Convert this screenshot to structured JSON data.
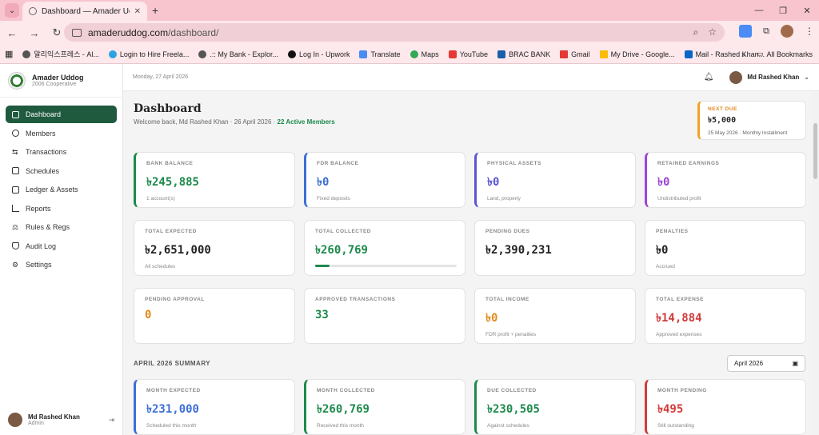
{
  "browser": {
    "tab_title": "Dashboard — Amader Uddog",
    "url_domain": "amaderuddog.com",
    "url_path": "/dashboard/",
    "bookmarks": [
      "알리익스프레스 - Al...",
      "Login to Hire Freela...",
      ".:: My Bank - Explor...",
      "Log In - Upwork",
      "Translate",
      "Maps",
      "YouTube",
      "BRAC BANK",
      "Gmail",
      "My Drive - Google...",
      "Mail - Rashed Khan..."
    ],
    "all_bookmarks": "All Bookmarks"
  },
  "sidebar": {
    "brand_name": "Amader Uddog",
    "brand_sub": "2006 Cooperative",
    "items": [
      {
        "label": "Dashboard",
        "icon": "grid-icon"
      },
      {
        "label": "Members",
        "icon": "users-icon"
      },
      {
        "label": "Transactions",
        "icon": "arrows-icon"
      },
      {
        "label": "Schedules",
        "icon": "calendar-icon"
      },
      {
        "label": "Ledger & Assets",
        "icon": "book-icon"
      },
      {
        "label": "Reports",
        "icon": "chart-icon"
      },
      {
        "label": "Rules & Regs",
        "icon": "scale-icon"
      },
      {
        "label": "Audit Log",
        "icon": "shield-icon"
      },
      {
        "label": "Settings",
        "icon": "gear-icon"
      }
    ],
    "user_name": "Md Rashed Khan",
    "user_role": "Admin"
  },
  "topbar": {
    "date": "Monday, 27 April 2026",
    "user_name": "Md Rashed Khan"
  },
  "header": {
    "title": "Dashboard",
    "welcome": "Welcome back, Md Rashed Khan · 26 April 2026 ·",
    "active_members": "22 Active Members"
  },
  "next_due": {
    "label": "NEXT DUE",
    "amount": "৳5,000",
    "sub": "25 May 2026 · Monthly Installment"
  },
  "cards_row1": [
    {
      "label": "BANK BALANCE",
      "value": "৳245,885",
      "sub": "1 account(s)",
      "color": "#1d8a4c"
    },
    {
      "label": "FDR BALANCE",
      "value": "৳0",
      "sub": "Fixed deposits",
      "color": "#3b6fd4"
    },
    {
      "label": "PHYSICAL ASSETS",
      "value": "৳0",
      "sub": "Land, property",
      "color": "#5b55d6"
    },
    {
      "label": "RETAINED EARNINGS",
      "value": "৳0",
      "sub": "Undistributed profit",
      "color": "#9b45d6"
    }
  ],
  "cards_row2": [
    {
      "label": "TOTAL EXPECTED",
      "value": "৳2,651,000",
      "sub": "All schedules",
      "color": "#222222"
    },
    {
      "label": "TOTAL COLLECTED",
      "value": "৳260,769",
      "sub": "",
      "color": "#1d8a4c",
      "progress": 0.1
    },
    {
      "label": "PENDING DUES",
      "value": "৳2,390,231",
      "sub": "",
      "color": "#222222"
    },
    {
      "label": "PENALTIES",
      "value": "৳0",
      "sub": "Accrued",
      "color": "#222222"
    }
  ],
  "cards_row3": [
    {
      "label": "PENDING APPROVAL",
      "value": "0",
      "sub": "",
      "color": "#e08a1a"
    },
    {
      "label": "APPROVED TRANSACTIONS",
      "value": "33",
      "sub": "",
      "color": "#1d8a4c"
    },
    {
      "label": "TOTAL INCOME",
      "value": "৳0",
      "sub": "FDR profit + penalties",
      "color": "#e08a1a"
    },
    {
      "label": "TOTAL EXPENSE",
      "value": "৳14,884",
      "sub": "Approved expenses",
      "color": "#d23a3a"
    }
  ],
  "summary": {
    "title": "APRIL 2026 SUMMARY",
    "month_select": "April 2026",
    "cards": [
      {
        "label": "MONTH EXPECTED",
        "value": "৳231,000",
        "sub": "Scheduled this month",
        "color": "#3b6fd4"
      },
      {
        "label": "MONTH COLLECTED",
        "value": "৳260,769",
        "sub": "Received this month",
        "color": "#1d8a4c"
      },
      {
        "label": "DUE COLLECTED",
        "value": "৳230,505",
        "sub": "Against schedules",
        "color": "#1d8a4c"
      },
      {
        "label": "MONTH PENDING",
        "value": "৳495",
        "sub": "Still outstanding",
        "color": "#d23a3a"
      }
    ]
  }
}
